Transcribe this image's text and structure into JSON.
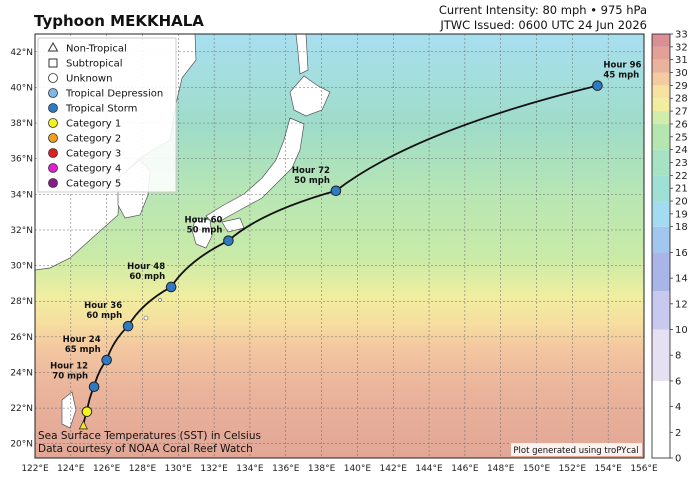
{
  "header": {
    "title": "Typhoon MEKKHALA",
    "intensity": "Current Intensity: 80 mph • 975 hPa",
    "issued": "JTWC Issued: 0600 UTC 24 Jun 2026"
  },
  "map": {
    "lon_range": [
      122,
      156
    ],
    "lat_range": [
      19.2,
      43
    ],
    "lon_ticks": [
      "122°E",
      "124°E",
      "126°E",
      "128°E",
      "130°E",
      "132°E",
      "134°E",
      "136°E",
      "138°E",
      "140°E",
      "142°E",
      "144°E",
      "146°E",
      "148°E",
      "150°E",
      "152°E",
      "154°E",
      "156°E"
    ],
    "lat_ticks": [
      "20°N",
      "22°N",
      "24°N",
      "26°N",
      "28°N",
      "30°N",
      "32°N",
      "34°N",
      "36°N",
      "38°N",
      "40°N",
      "42°N"
    ]
  },
  "legend": {
    "items": [
      {
        "label": "Non-Tropical",
        "icon": "triangle-icon",
        "color": "#ffffff"
      },
      {
        "label": "Subtropical",
        "icon": "square-icon",
        "color": "#ffffff"
      },
      {
        "label": "Unknown",
        "icon": "circle-outline-icon",
        "color": "#ffffff"
      },
      {
        "label": "Tropical Depression",
        "icon": "circle-icon",
        "color": "#7db8e8"
      },
      {
        "label": "Tropical Storm",
        "icon": "circle-icon",
        "color": "#2e7bc4"
      },
      {
        "label": "Category 1",
        "icon": "circle-icon",
        "color": "#f5f31c"
      },
      {
        "label": "Category 2",
        "icon": "circle-icon",
        "color": "#f0a020"
      },
      {
        "label": "Category 3",
        "icon": "circle-icon",
        "color": "#e02020"
      },
      {
        "label": "Category 4",
        "icon": "circle-icon",
        "color": "#e020d0"
      },
      {
        "label": "Category 5",
        "icon": "circle-icon",
        "color": "#8a1a8a"
      }
    ]
  },
  "forecast": {
    "points": [
      {
        "label": "",
        "lon": 124.7,
        "lat": 21.0,
        "color": "#f5e61c",
        "marker": "triangle"
      },
      {
        "label": "",
        "lon": 124.9,
        "lat": 21.8,
        "color": "#f5f31c",
        "marker": "circle"
      },
      {
        "label": "Hour 12\n70 mph",
        "lon": 125.3,
        "lat": 23.2,
        "color": "#2e7bc4",
        "marker": "circle"
      },
      {
        "label": "Hour 24\n65 mph",
        "lon": 126.0,
        "lat": 24.7,
        "color": "#2e7bc4",
        "marker": "circle"
      },
      {
        "label": "Hour 36\n60 mph",
        "lon": 127.2,
        "lat": 26.6,
        "color": "#2e7bc4",
        "marker": "circle"
      },
      {
        "label": "Hour 48\n60 mph",
        "lon": 129.6,
        "lat": 28.8,
        "color": "#2e7bc4",
        "marker": "circle"
      },
      {
        "label": "Hour 60\n50 mph",
        "lon": 132.8,
        "lat": 31.4,
        "color": "#2e7bc4",
        "marker": "circle"
      },
      {
        "label": "Hour 72\n50 mph",
        "lon": 138.8,
        "lat": 34.2,
        "color": "#2e7bc4",
        "marker": "circle"
      },
      {
        "label": "Hour 96\n45 mph",
        "lon": 153.4,
        "lat": 40.1,
        "color": "#2e7bc4",
        "marker": "circle"
      }
    ]
  },
  "colorbar": {
    "min": 0,
    "max": 33,
    "ticks": [
      "0",
      "2",
      "4",
      "6",
      "8",
      "10",
      "12",
      "14",
      "16",
      "18",
      "19",
      "20",
      "21",
      "22",
      "23",
      "24",
      "25",
      "26",
      "27",
      "28",
      "29",
      "30",
      "31",
      "32",
      "33"
    ]
  },
  "notes": {
    "sst_line1": "Sea Surface Temperatures (SST) in Celsius",
    "sst_line2": "Data courtesy of NOAA Coral Reef Watch",
    "credit": "Plot generated using troPYcal"
  }
}
